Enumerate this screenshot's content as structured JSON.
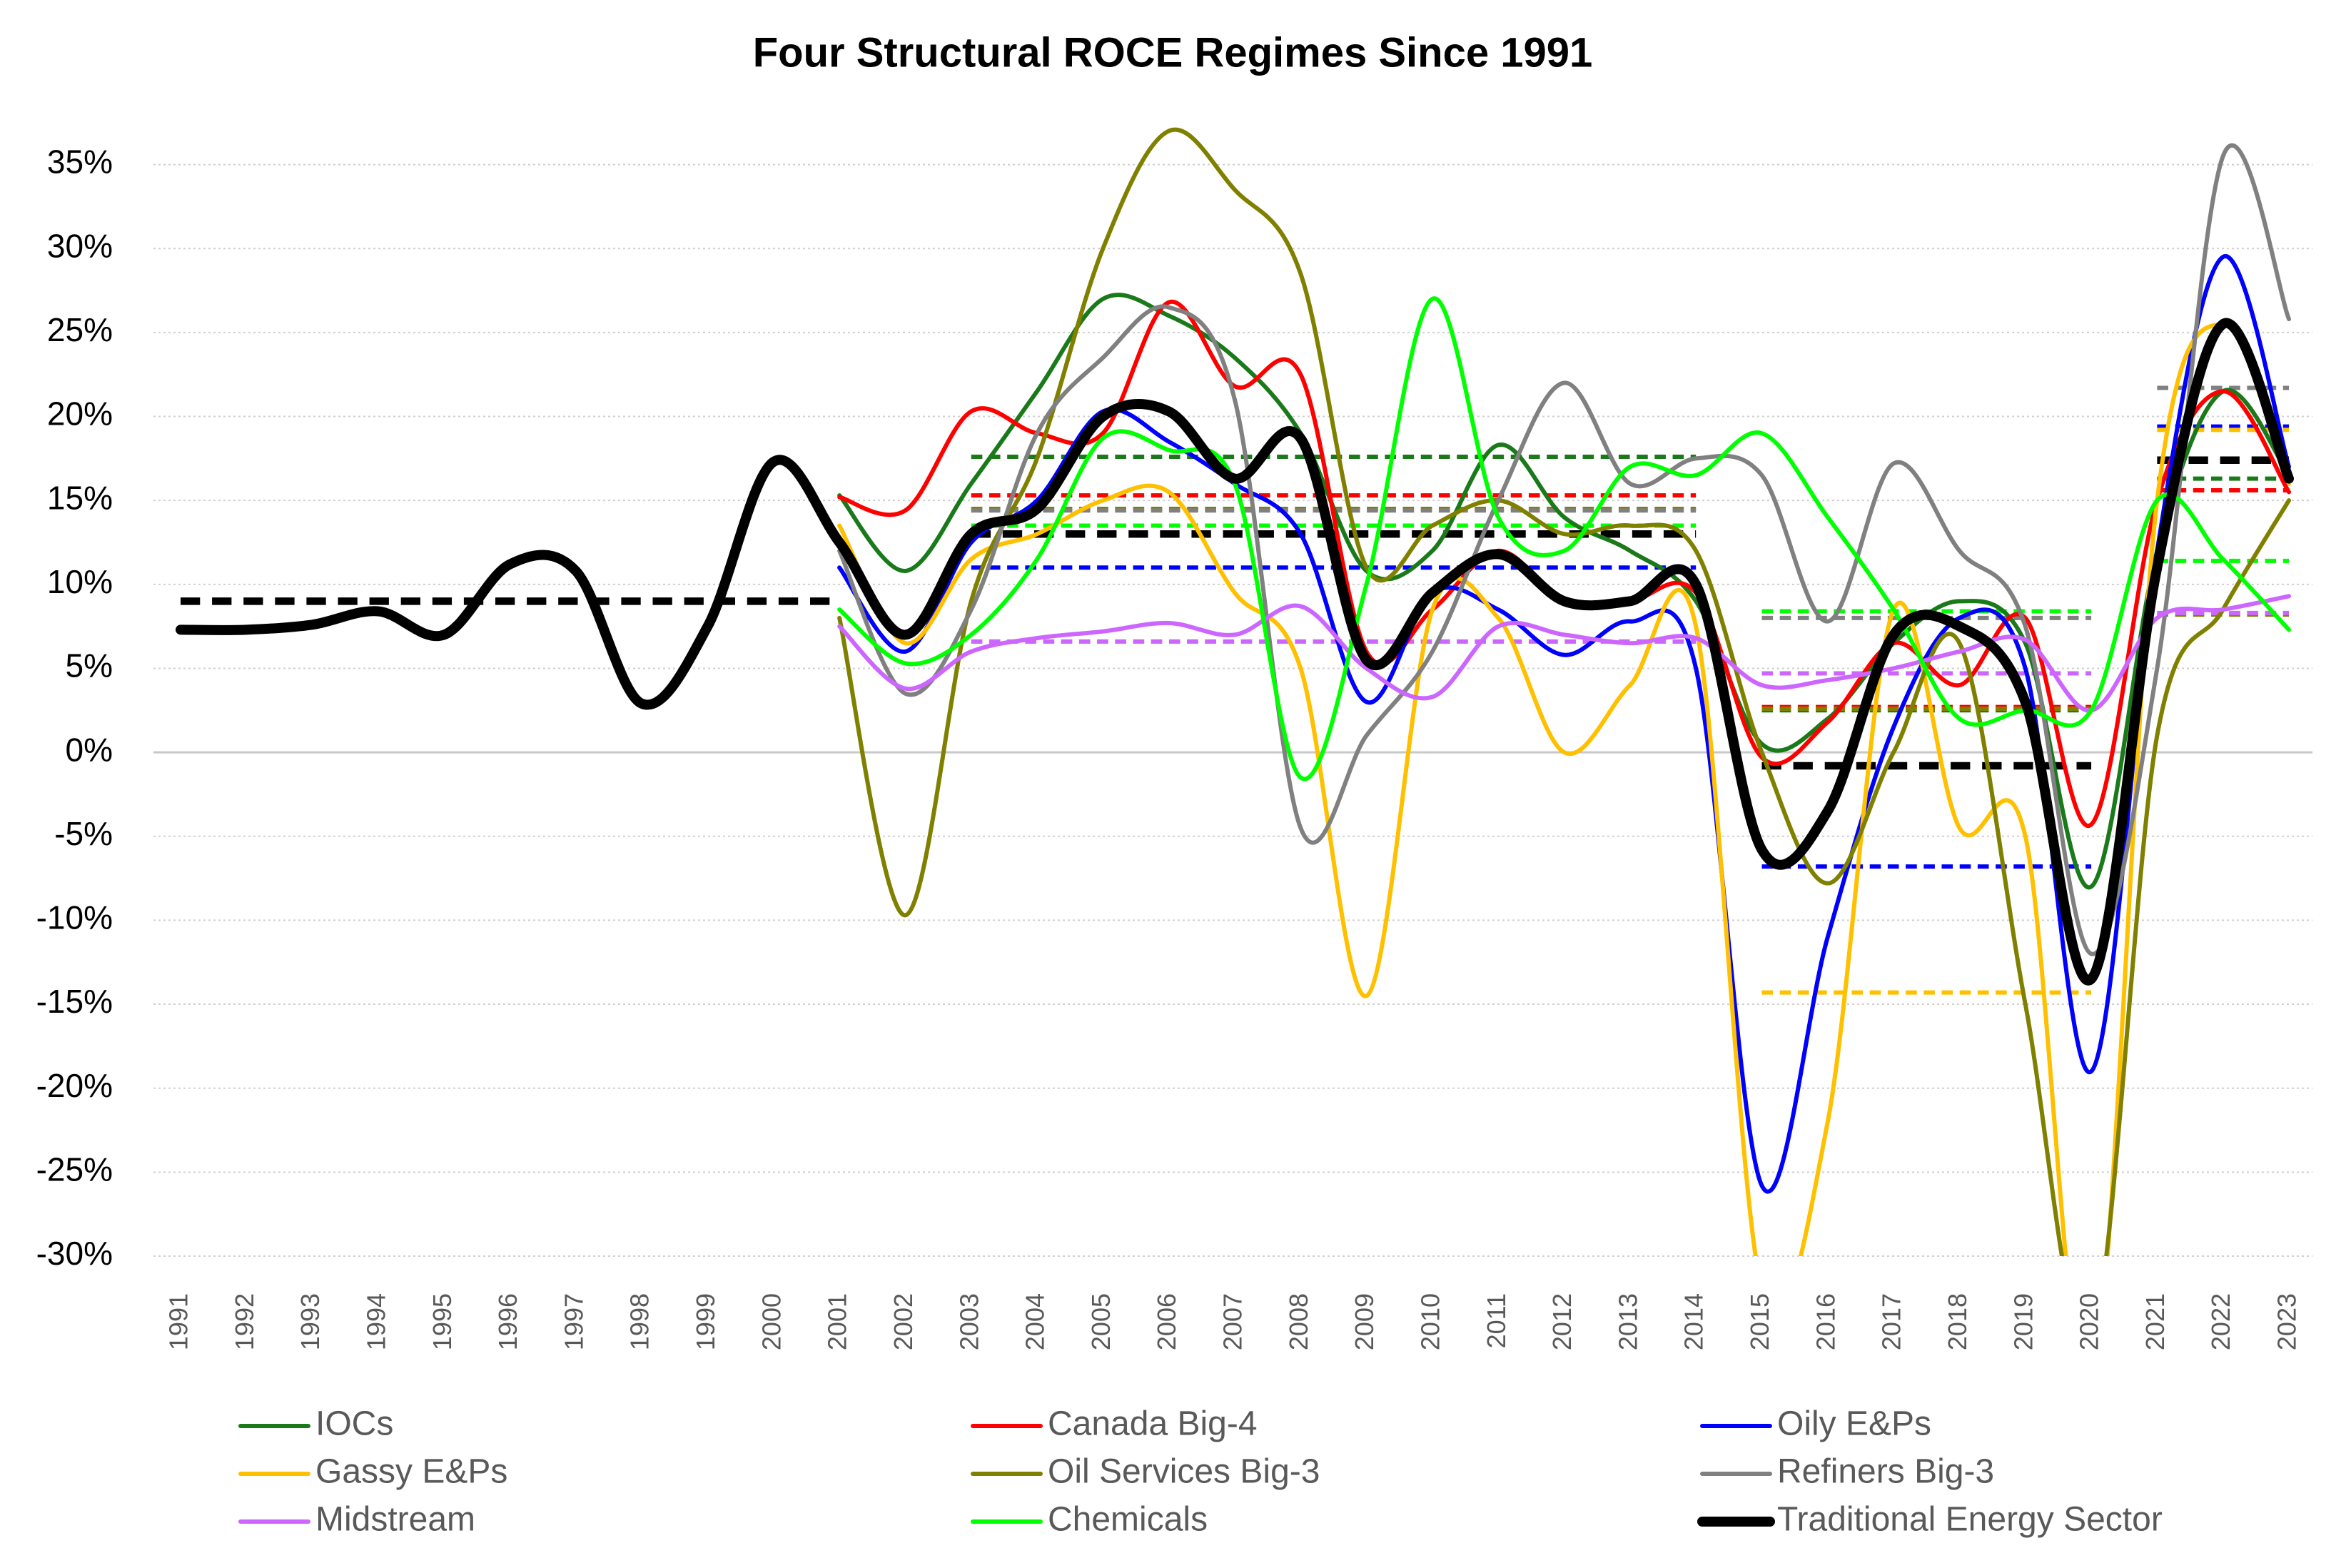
{
  "chart_data": {
    "type": "line",
    "title": "Four Structural ROCE Regimes Since 1991",
    "categories": [
      "1991",
      "1992",
      "1993",
      "1994",
      "1995",
      "1996",
      "1997",
      "1998",
      "1999",
      "2000",
      "2001",
      "2002",
      "2003",
      "2004",
      "2005",
      "2006",
      "2007",
      "2008",
      "2009",
      "2010",
      "2011",
      "2012",
      "2013",
      "2014",
      "2015",
      "2016",
      "2017",
      "2018",
      "2019",
      "2020",
      "2021",
      "2022",
      "2023"
    ],
    "ylim": [
      -30,
      38
    ],
    "yticks": [
      {
        "value": -30,
        "label": "-30%"
      },
      {
        "value": -25,
        "label": "-25%"
      },
      {
        "value": -20,
        "label": "-20%"
      },
      {
        "value": -15,
        "label": "-15%"
      },
      {
        "value": -10,
        "label": "-10%"
      },
      {
        "value": -5,
        "label": "-5%"
      },
      {
        "value": 0,
        "label": "0%"
      },
      {
        "value": 5,
        "label": "5%"
      },
      {
        "value": 10,
        "label": "10%"
      },
      {
        "value": 15,
        "label": "15%"
      },
      {
        "value": 20,
        "label": "20%"
      },
      {
        "value": 25,
        "label": "25%"
      },
      {
        "value": 30,
        "label": "30%"
      },
      {
        "value": 35,
        "label": "35%"
      }
    ],
    "grid": true,
    "smooth": true,
    "legend": "bottom",
    "series": [
      {
        "name": "IOCs",
        "color": "#1a7a1a",
        "width": 6,
        "values": [
          null,
          null,
          null,
          null,
          null,
          null,
          null,
          null,
          null,
          null,
          15.3,
          10.8,
          16.0,
          21.5,
          27.0,
          26.0,
          23.5,
          19.0,
          10.8,
          12.0,
          18.3,
          14.0,
          12.0,
          9.0,
          0.5,
          2.0,
          6.5,
          9.0,
          6.5,
          -8.0,
          12.0,
          21.5,
          16.5
        ],
        "regimes": [
          {
            "start": "2003",
            "end": "2014",
            "value": 17.6
          },
          {
            "start": "2015",
            "end": "2020",
            "value": 2.5
          },
          {
            "start": "2021",
            "end": "2023",
            "value": 16.3
          }
        ]
      },
      {
        "name": "Canada Big-4",
        "color": "#ff0000",
        "width": 6,
        "values": [
          null,
          null,
          null,
          null,
          null,
          null,
          null,
          null,
          null,
          null,
          15.2,
          14.4,
          20.3,
          19.0,
          19.0,
          26.8,
          21.8,
          22.5,
          6.0,
          8.5,
          12.0,
          9.0,
          9.0,
          9.5,
          -0.3,
          1.8,
          6.5,
          4.0,
          8.0,
          -4.3,
          15.0,
          21.5,
          15.5
        ],
        "regimes": [
          {
            "start": "2003",
            "end": "2014",
            "value": 15.3
          },
          {
            "start": "2015",
            "end": "2020",
            "value": 2.7
          },
          {
            "start": "2021",
            "end": "2023",
            "value": 15.6
          }
        ]
      },
      {
        "name": "Oily E&Ps",
        "color": "#0000ff",
        "width": 6,
        "values": [
          null,
          null,
          null,
          null,
          null,
          null,
          null,
          null,
          null,
          null,
          11.0,
          6.0,
          12.5,
          15.0,
          20.3,
          18.5,
          16.0,
          13.0,
          3.0,
          9.5,
          8.5,
          5.8,
          7.8,
          5.0,
          -25.8,
          -11.0,
          1.5,
          8.0,
          5.0,
          -19.0,
          12.0,
          29.5,
          17.0
        ],
        "regimes": [
          {
            "start": "2003",
            "end": "2014",
            "value": 11.0
          },
          {
            "start": "2015",
            "end": "2020",
            "value": -6.8
          },
          {
            "start": "2021",
            "end": "2023",
            "value": 19.4
          }
        ]
      },
      {
        "name": "Gassy E&Ps",
        "color": "#ffc000",
        "width": 6,
        "values": [
          null,
          null,
          null,
          null,
          null,
          null,
          null,
          null,
          null,
          null,
          13.5,
          6.5,
          11.5,
          13.0,
          15.0,
          15.5,
          9.5,
          5.0,
          -14.5,
          8.5,
          8.0,
          0.0,
          4.0,
          7.5,
          -32.0,
          -22.0,
          8.5,
          -4.5,
          -5.0,
          -38.0,
          15.0,
          25.5,
          16.0
        ],
        "regimes": [
          {
            "start": "2003",
            "end": "2014",
            "value": 6.6
          },
          {
            "start": "2015",
            "end": "2020",
            "value": -14.3
          },
          {
            "start": "2021",
            "end": "2023",
            "value": 19.2
          }
        ]
      },
      {
        "name": "Oil Services Big-3",
        "color": "#808000",
        "width": 6,
        "values": [
          null,
          null,
          null,
          null,
          null,
          null,
          null,
          null,
          null,
          null,
          8.0,
          -9.7,
          9.0,
          17.5,
          30.0,
          37.0,
          33.5,
          28.5,
          11.0,
          13.5,
          15.0,
          13.0,
          13.5,
          12.0,
          0.0,
          -7.8,
          0.0,
          6.5,
          -15.0,
          -35.0,
          1.0,
          8.5,
          15.0
        ],
        "regimes": [
          {
            "start": "2003",
            "end": "2014",
            "value": 14.5
          },
          {
            "start": "2015",
            "end": "2020",
            "value": 2.6
          },
          {
            "start": "2021",
            "end": "2023",
            "value": 8.2
          }
        ]
      },
      {
        "name": "Refiners Big-3",
        "color": "#808080",
        "width": 6,
        "values": [
          null,
          null,
          null,
          null,
          null,
          null,
          null,
          null,
          null,
          null,
          12.0,
          3.5,
          8.5,
          19.0,
          23.5,
          26.5,
          21.0,
          -4.5,
          1.0,
          6.0,
          15.0,
          22.0,
          16.0,
          17.5,
          16.5,
          7.8,
          17.2,
          12.0,
          7.5,
          -12.0,
          5.0,
          35.5,
          25.8
        ],
        "regimes": [
          {
            "start": "2003",
            "end": "2014",
            "value": 14.4
          },
          {
            "start": "2015",
            "end": "2020",
            "value": 8.0
          },
          {
            "start": "2021",
            "end": "2023",
            "value": 21.7
          }
        ]
      },
      {
        "name": "Midstream",
        "color": "#cc66ff",
        "width": 6,
        "values": [
          null,
          null,
          null,
          null,
          null,
          null,
          null,
          null,
          null,
          null,
          7.5,
          3.8,
          6.0,
          6.8,
          7.2,
          7.7,
          7.0,
          8.7,
          5.0,
          3.3,
          7.5,
          7.0,
          6.5,
          6.8,
          4.0,
          4.3,
          5.0,
          6.0,
          6.7,
          2.5,
          8.0,
          8.5,
          9.3
        ],
        "regimes": [
          {
            "start": "2003",
            "end": "2014",
            "value": 6.6
          },
          {
            "start": "2015",
            "end": "2020",
            "value": 4.7
          },
          {
            "start": "2021",
            "end": "2023",
            "value": 8.3
          }
        ]
      },
      {
        "name": "Chemicals",
        "color": "#00ff00",
        "width": 6,
        "values": [
          null,
          null,
          null,
          null,
          null,
          null,
          null,
          null,
          null,
          null,
          8.5,
          5.3,
          7.0,
          11.5,
          18.7,
          18.0,
          16.0,
          -1.5,
          10.0,
          27.0,
          14.0,
          12.0,
          17.0,
          16.5,
          19.0,
          14.0,
          8.5,
          2.0,
          2.5,
          2.5,
          15.0,
          11.5,
          7.3
        ],
        "regimes": [
          {
            "start": "2003",
            "end": "2014",
            "value": 13.5
          },
          {
            "start": "2015",
            "end": "2020",
            "value": 8.4
          },
          {
            "start": "2021",
            "end": "2023",
            "value": 11.4
          }
        ]
      },
      {
        "name": "Traditional Energy Sector",
        "color": "#000000",
        "width": 14,
        "values": [
          7.3,
          7.3,
          7.6,
          8.4,
          7.0,
          11.2,
          10.8,
          2.9,
          7.5,
          17.3,
          12.5,
          7.0,
          13.0,
          14.5,
          20.0,
          20.3,
          16.3,
          18.7,
          5.5,
          9.5,
          11.8,
          9.0,
          9.0,
          10.0,
          -5.8,
          -3.5,
          7.0,
          7.5,
          3.0,
          -13.5,
          11.0,
          25.5,
          16.3
        ],
        "regimes": [
          {
            "start": "1991",
            "end": "2001",
            "value": 9.0
          },
          {
            "start": "2003",
            "end": "2014",
            "value": 13.0
          },
          {
            "start": "2015",
            "end": "2020",
            "value": -0.8
          },
          {
            "start": "2021",
            "end": "2023",
            "value": 17.4
          }
        ]
      }
    ]
  }
}
